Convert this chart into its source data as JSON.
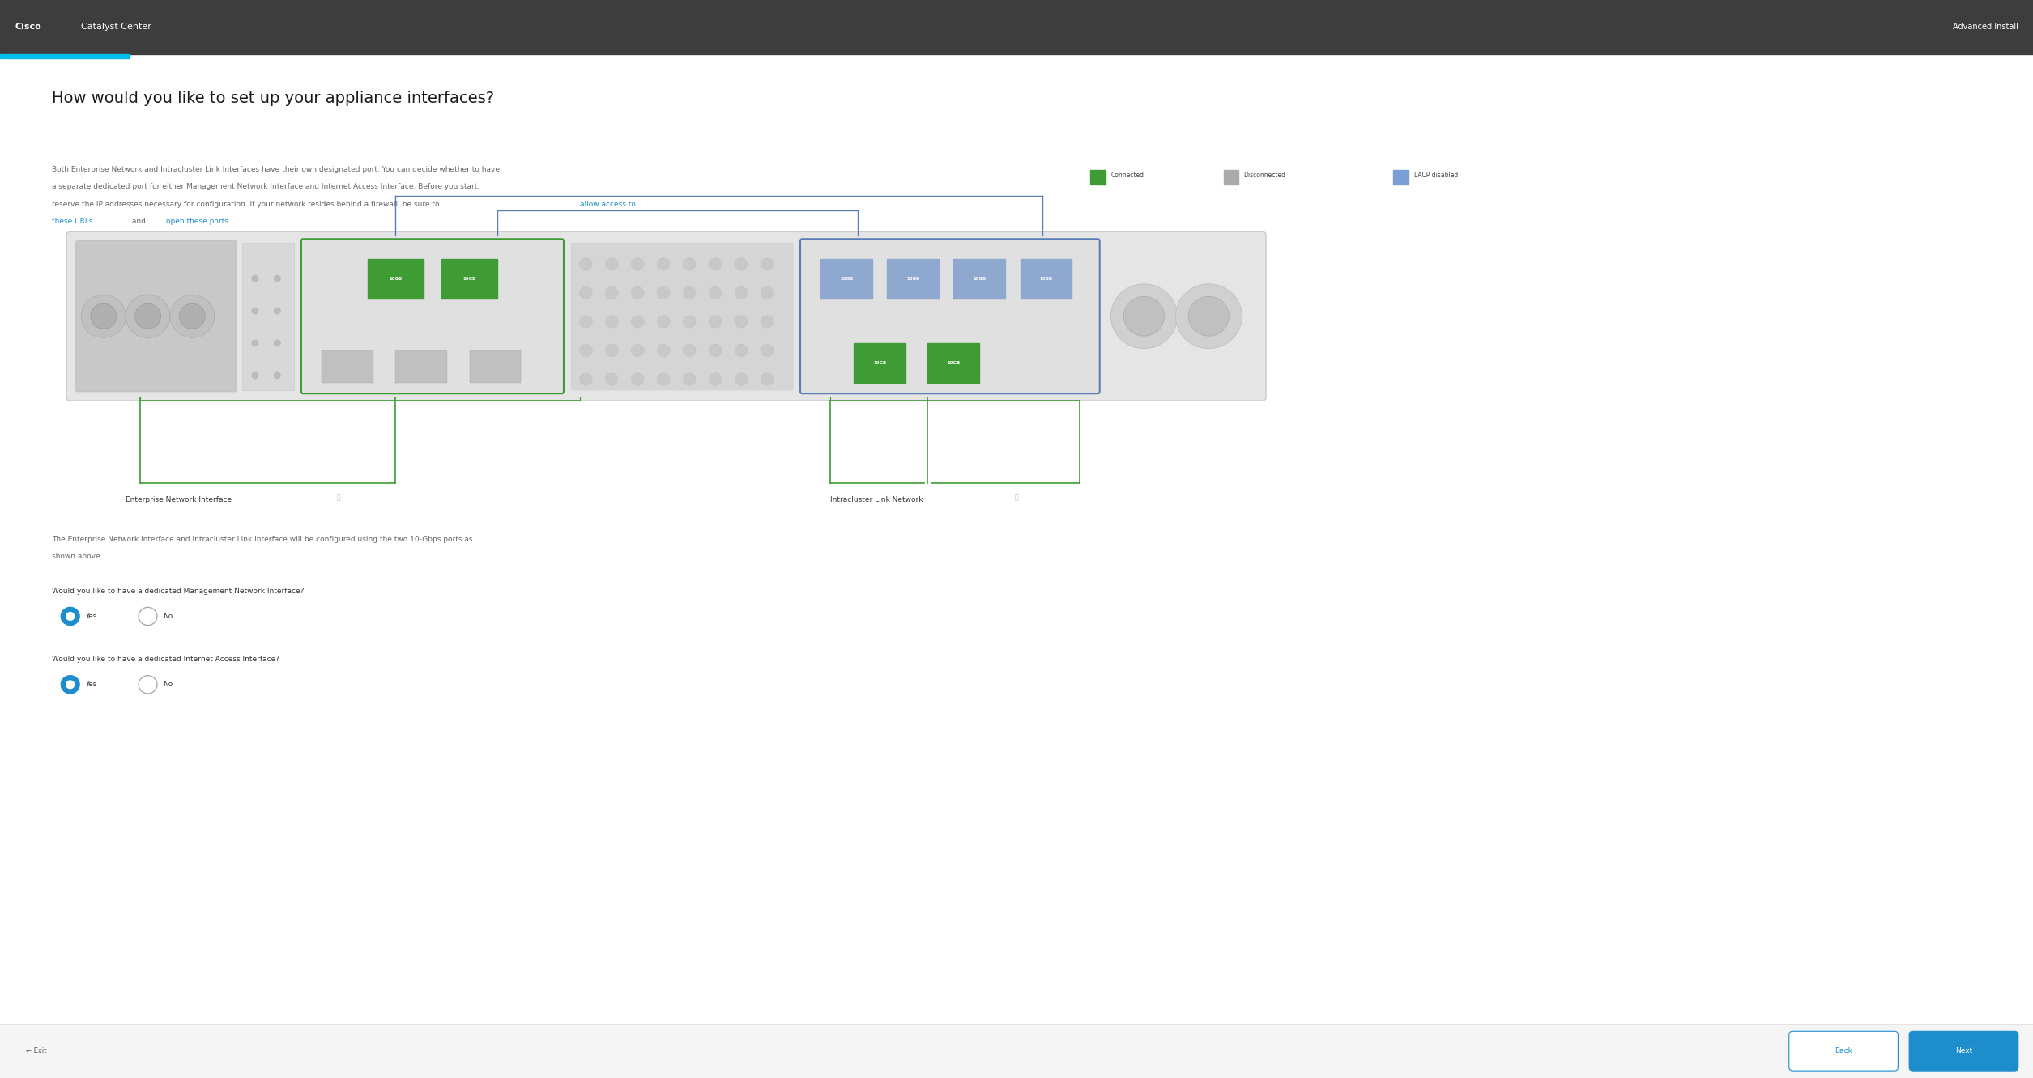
{
  "header_bg": "#3d3d3d",
  "header_text": "Catalyst Center",
  "header_cisco_bold": "Cisco",
  "header_right_text": "Advanced Install",
  "progress_bar_color": "#00bceb",
  "main_bg": "#ffffff",
  "title": "How would you like to set up your appliance interfaces?",
  "title_color": "#1a1a1a",
  "title_fontsize": 28,
  "body_text_line1": "Both Enterprise Network and Intracluster Link Interfaces have their own designated port. You can decide whether to have",
  "body_text_line2": "a separate dedicated port for either Management Network Interface and Internet Access Interface. Before you start,",
  "body_text_line3": "reserve the IP addresses necessary for configuration. If your network resides behind a firewall, be sure to ",
  "body_text_line4_pre": "these URLs",
  "body_text_line4_and": " and ",
  "body_text_line4_link": "open these ports",
  "body_text_line4_end": ".",
  "body_text_color": "#666666",
  "body_fontsize": 13,
  "link_color": "#1d8dcc",
  "allow_text": "allow access to",
  "legend_connected": "Connected",
  "legend_disconnected": "Disconnected",
  "legend_lacp": "LACP disabled",
  "legend_green": "#3f9c35",
  "legend_gray": "#aaaaaa",
  "legend_blue": "#7b9fd4",
  "green_port_color": "#3f9c35",
  "blue_port_color": "#8fa8d0",
  "green_border_color": "#3f9c35",
  "blue_border_color": "#5b7db5",
  "eni_label": "Enterprise Network Interface",
  "icl_label": "Intracluster Link Network",
  "q1_text": "Would you like to have a dedicated Management Network Interface?",
  "q2_text": "Would you like to have a dedicated Internet Access Interface?",
  "body_desc_line1": "The Enterprise Network Interface and Intracluster Link Interface will be configured using the two 10-Gbps ports as",
  "body_desc_line2": "shown above.",
  "yes_label": "Yes",
  "no_label": "No",
  "radio_color": "#1d8dcc",
  "back_btn": "Back",
  "next_btn": "Next",
  "btn_border": "#1d8dcc",
  "next_btn_bg": "#1d8dcc",
  "exit_text": "← Exit",
  "footer_separator": "#dddddd",
  "footer_bg": "#f5f5f5"
}
